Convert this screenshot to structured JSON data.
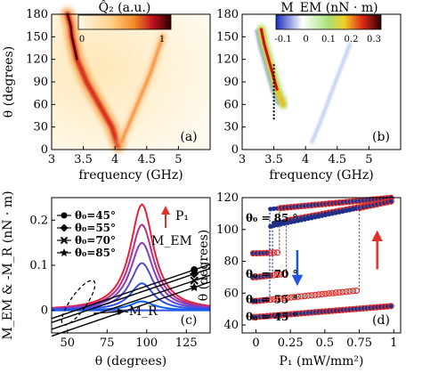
{
  "chart_data": [
    {
      "panel": "(a)",
      "type": "heatmap",
      "colorbar_title": "Q̂₂ (a.u.)",
      "colorbar_ticks": [
        "0",
        "1"
      ],
      "xlabel": "frequency (GHz)",
      "ylabel": "θ (degrees)",
      "xlim": [
        3,
        5.5
      ],
      "ylim": [
        0,
        180
      ],
      "xticks": [
        "3",
        "3.5",
        "4",
        "4.5",
        "5"
      ],
      "yticks": [
        "0",
        "30",
        "60",
        "90",
        "120",
        "150",
        "180"
      ],
      "colors": [
        "#fff3d8",
        "#ffd28a",
        "#f28c28",
        "#c1121f",
        "#3a0000"
      ],
      "branches": [
        {
          "x": [
            3.25,
            3.3,
            3.32,
            3.4,
            3.55,
            3.75,
            3.95,
            4.05
          ],
          "y": [
            180,
            165,
            150,
            120,
            90,
            60,
            30,
            5
          ],
          "intensity": 1.0
        },
        {
          "x": [
            4.1,
            4.2,
            4.35,
            4.55,
            4.75
          ],
          "y": [
            10,
            30,
            60,
            100,
            150
          ],
          "intensity": 0.45
        }
      ]
    },
    {
      "panel": "(b)",
      "type": "heatmap",
      "colorbar_title": "M_EM (nN · m)",
      "colorbar_ticks": [
        "-0.1",
        "0",
        "0.1",
        "0.2",
        "0.3"
      ],
      "xlabel": "frequency (GHz)",
      "xlim": [
        3,
        5.5
      ],
      "ylim": [
        0,
        180
      ],
      "xticks": [
        "3",
        "3.5",
        "4",
        "4.5",
        "5"
      ],
      "yticks": [
        "0",
        "30",
        "60",
        "90",
        "120",
        "150",
        "180"
      ],
      "colors": [
        "#1f36c8",
        "#ffffff",
        "#a8e07a",
        "#f2d024",
        "#e02a1a",
        "#3a0000"
      ],
      "marker_line_x": 3.5,
      "marker_line_y": [
        40,
        115
      ],
      "branches": [
        {
          "x": [
            3.3,
            3.35,
            3.45,
            3.55,
            3.65
          ],
          "y": [
            160,
            140,
            110,
            80,
            60
          ],
          "intensity": 1.0
        },
        {
          "x": [
            4.1,
            4.25,
            4.45,
            4.7
          ],
          "y": [
            10,
            40,
            85,
            140
          ],
          "intensity": 0.35
        }
      ]
    },
    {
      "panel": "(c)",
      "type": "line",
      "xlabel": "θ (degrees)",
      "ylabel": "M_EM & -M_R (nN · m)",
      "xlim": [
        40,
        140
      ],
      "ylim": [
        -0.05,
        0.25
      ],
      "xticks": [
        "50",
        "75",
        "100",
        "125"
      ],
      "yticks": [
        "0",
        "0.1",
        "0.2"
      ],
      "arrow_label": "P₁",
      "mem_label": "M_EM",
      "mr_label": "-M_R",
      "legend": [
        {
          "label": "θ₀=45°",
          "marker": "circle"
        },
        {
          "label": "θ₀=55°",
          "marker": "diamond"
        },
        {
          "label": "θ₀=70°",
          "marker": "cross"
        },
        {
          "label": "θ₀=85°",
          "marker": "star"
        }
      ],
      "mem_series": [
        {
          "peak": 0.235,
          "color": "#e8203a"
        },
        {
          "peak": 0.19,
          "color": "#b83088"
        },
        {
          "peak": 0.15,
          "color": "#8a3cc0"
        },
        {
          "peak": 0.105,
          "color": "#5a48d8"
        },
        {
          "peak": 0.06,
          "color": "#3050e8"
        },
        {
          "peak": 0.02,
          "color": "#1060f0"
        }
      ],
      "mr_lines": [
        {
          "theta0": 45,
          "slope": 0.0012
        },
        {
          "theta0": 55,
          "slope": 0.0012
        },
        {
          "theta0": 70,
          "slope": 0.0012
        },
        {
          "theta0": 85,
          "slope": 0.0012
        }
      ]
    },
    {
      "panel": "(d)",
      "type": "scatter",
      "xlabel": "P₁ (mW/mm²)",
      "ylabel": "θ (degrees)",
      "xlim": [
        -0.1,
        1.05
      ],
      "ylim": [
        35,
        120
      ],
      "xticks": [
        "0",
        "0.25",
        "0.5",
        "0.75",
        "1"
      ],
      "yticks": [
        "40",
        "60",
        "80",
        "100",
        "120"
      ],
      "labels": [
        "θ₀ = 85 °",
        "θ₀ = 70 °",
        "θ₀ = 55 °",
        "θ₀ = 45 °"
      ],
      "label_theta": [
        107,
        72,
        56,
        45
      ],
      "series": [
        {
          "name": "θ₀ = 85 °",
          "up_switch": 0.17,
          "down_switch": 0.1,
          "low": [
            85,
            88
          ],
          "high": [
            112,
            120
          ]
        },
        {
          "name": "θ₀ = 70 °",
          "up_switch": 0.22,
          "down_switch": 0.12,
          "low": [
            70,
            80
          ],
          "high": [
            102,
            118
          ]
        },
        {
          "name": "θ₀ = 55 °",
          "up_switch": 0.75,
          "down_switch": 0.1,
          "low": [
            55,
            64
          ],
          "high": [
            100,
            118
          ]
        },
        {
          "name": "θ₀ = 45 °",
          "up_switch": null,
          "down_switch": null,
          "low": [
            45,
            52
          ],
          "high": null
        }
      ],
      "hollow_color": "#e0302a",
      "fill_color": "#20308a",
      "arrow_down_color": "#1f55e0",
      "arrow_up_color": "#e0302a"
    }
  ]
}
